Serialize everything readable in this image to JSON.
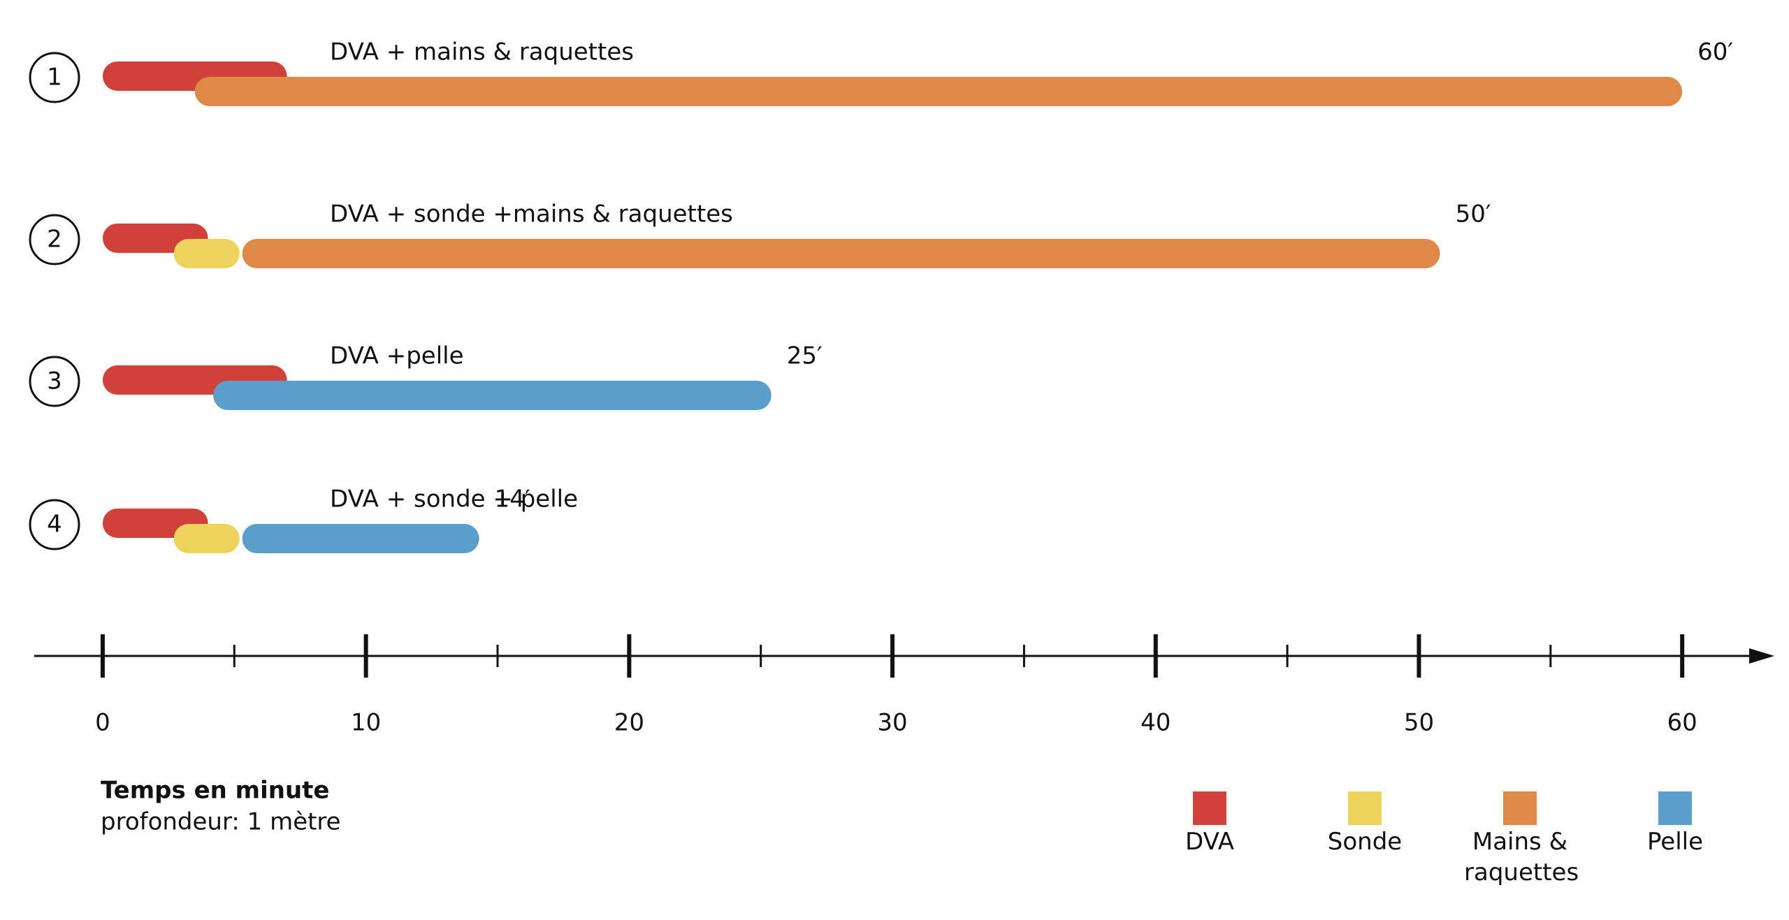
{
  "chart_data": {
    "type": "gantt",
    "xlabel": "Temps en minute",
    "subtitle": "profondeur: 1 mètre",
    "xlim": [
      -2.6,
      63.5
    ],
    "xticks": [
      0,
      10,
      20,
      30,
      40,
      50,
      60
    ],
    "minor_xticks": [
      5,
      15,
      25,
      35,
      45,
      55
    ],
    "series": [
      {
        "name": "DVA",
        "color": "#d0413a"
      },
      {
        "name": "Sonde",
        "color": "#edd35b"
      },
      {
        "name": "Mains & raquettes",
        "color": "#e08946"
      },
      {
        "name": "Pelle",
        "color": "#5a9fcb"
      }
    ],
    "rows": [
      {
        "id": "1",
        "label": "DVA + mains & raquettes",
        "total": "60′",
        "segments": [
          {
            "task": "DVA",
            "start": 0,
            "end": 7
          },
          {
            "task": "Mains & raquettes",
            "start": 3.5,
            "end": 60
          }
        ]
      },
      {
        "id": "2",
        "label": "DVA + sonde +mains & raquettes",
        "total": "50′",
        "segments": [
          {
            "task": "DVA",
            "start": 0,
            "end": 4
          },
          {
            "task": "Sonde",
            "start": 2.7,
            "end": 5.2
          },
          {
            "task": "Mains & raquettes",
            "start": 5.3,
            "end": 50.8
          }
        ]
      },
      {
        "id": "3",
        "label": "DVA +pelle",
        "total": "25′",
        "segments": [
          {
            "task": "DVA",
            "start": 0,
            "end": 7
          },
          {
            "task": "Pelle",
            "start": 4.2,
            "end": 25.4
          }
        ]
      },
      {
        "id": "4",
        "label": "DVA + sonde + pelle",
        "total": "14′",
        "segments": [
          {
            "task": "DVA",
            "start": 0,
            "end": 4
          },
          {
            "task": "Sonde",
            "start": 2.7,
            "end": 5.2
          },
          {
            "task": "Pelle",
            "start": 5.3,
            "end": 14.3
          }
        ]
      }
    ]
  }
}
